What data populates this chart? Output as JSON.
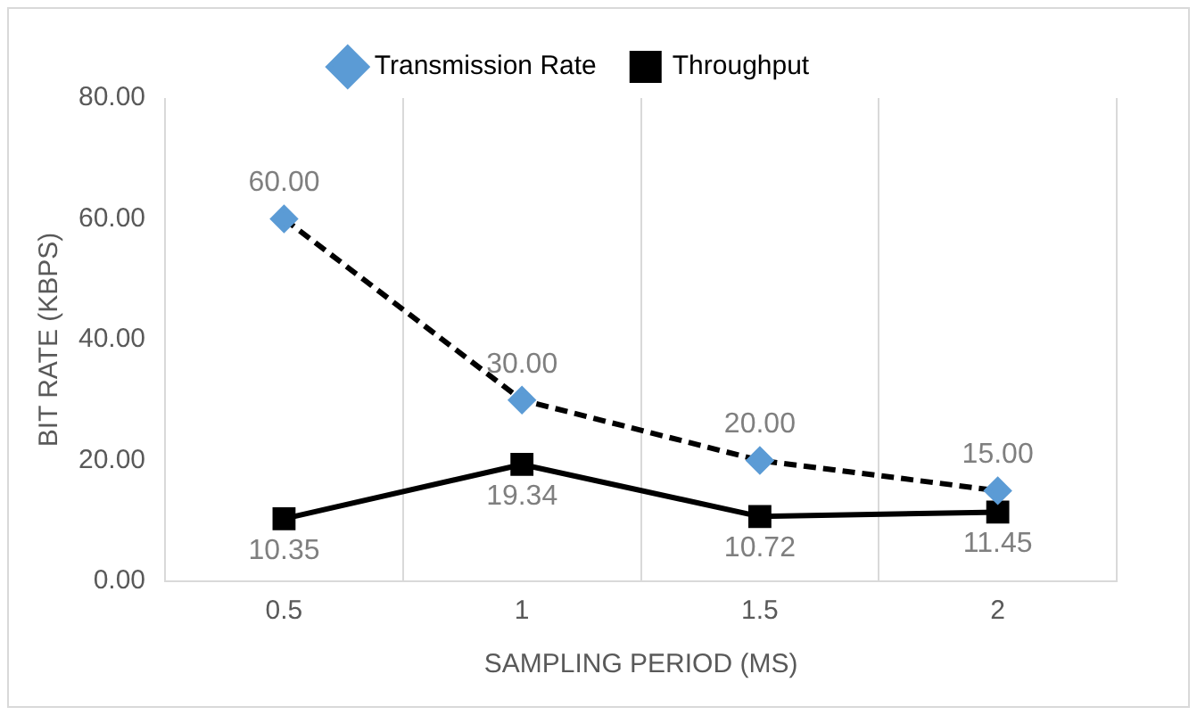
{
  "chart_data": {
    "type": "line",
    "xlabel": "SAMPLING PERIOD (MS)",
    "ylabel": "BIT RATE (KBPS)",
    "categories": [
      "0.5",
      "1",
      "1.5",
      "2"
    ],
    "series": [
      {
        "name": "Transmission Rate",
        "color": "#5b9bd5",
        "values": [
          60,
          30,
          20,
          15
        ],
        "value_labels": [
          "60.00",
          "30.00",
          "20.00",
          "15.00"
        ],
        "marker": "diamond",
        "line_style": "dashed"
      },
      {
        "name": "Throughput",
        "color": "#000000",
        "values": [
          10.35,
          19.34,
          10.72,
          11.45
        ],
        "value_labels": [
          "10.35",
          "19.34",
          "10.72",
          "11.45"
        ],
        "marker": "square",
        "line_style": "solid"
      }
    ],
    "ylim": [
      0,
      80
    ],
    "yticks": [
      {
        "value": 0,
        "label": "0.00"
      },
      {
        "value": 20,
        "label": "20.00"
      },
      {
        "value": 40,
        "label": "40.00"
      },
      {
        "value": 60,
        "label": "60.00"
      },
      {
        "value": 80,
        "label": "80.00"
      }
    ],
    "grid": "x",
    "legend": "top"
  }
}
